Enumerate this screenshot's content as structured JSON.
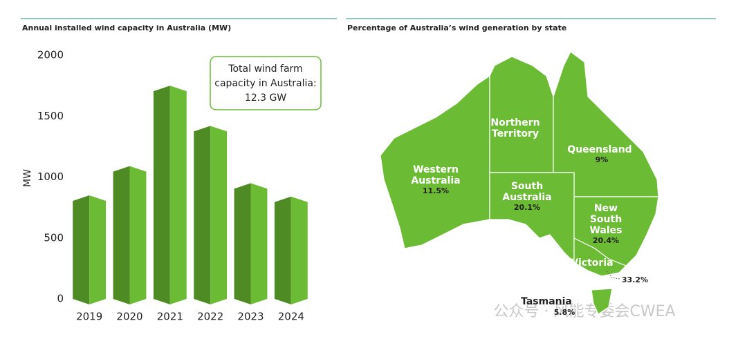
{
  "chart_data": [
    {
      "type": "bar",
      "title": "Annual installed wind capacity in Australia (MW)",
      "y_label": "MW",
      "categories": [
        "2019",
        "2020",
        "2021",
        "2022",
        "2023",
        "2024"
      ],
      "values": [
        850,
        1090,
        1750,
        1420,
        950,
        840
      ],
      "color": "#6cbb35",
      "ylim": [
        0,
        2000
      ],
      "yticks": [
        0,
        500,
        1000,
        1500,
        2000
      ],
      "grid": false,
      "annotation": [
        "Total wind farm",
        "capacity in Australia:",
        "12.3 GW"
      ]
    },
    {
      "type": "map",
      "title": "Percentage of Australia’s wind generation by state",
      "color": "#6cbb35",
      "categories": [
        [
          "Western",
          "Australia"
        ],
        [
          "Northern",
          "Territory"
        ],
        [
          "Queensland"
        ],
        [
          "South",
          "Australia"
        ],
        [
          "New",
          "South",
          "Wales"
        ],
        [
          "Victoria"
        ],
        [
          "Tasmania"
        ]
      ],
      "values": [
        11.5,
        null,
        9,
        20.1,
        20.4,
        33.2,
        5.8
      ],
      "value_labels": [
        "11.5%",
        null,
        "9%",
        "20.1%",
        "20.4%",
        "33.2%",
        "5.8%"
      ]
    }
  ],
  "watermark": "公众号 · 风能专委会CWEA"
}
